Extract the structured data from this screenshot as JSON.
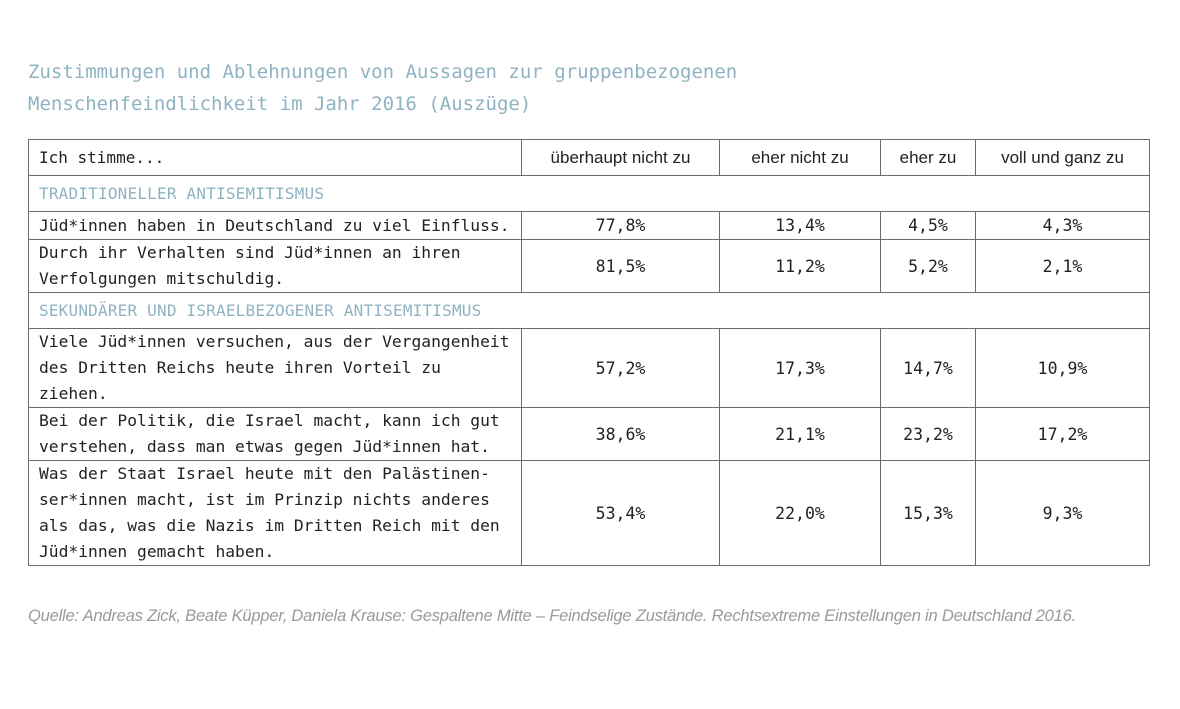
{
  "title": {
    "line1": "Zustimmungen und Ablehnungen von Aussagen zur gruppenbezogenen",
    "line2": "Menschenfeindlichkeit im Jahr 2016 (Auszüge)"
  },
  "table": {
    "headers": [
      "Ich stimme...",
      "überhaupt nicht zu",
      "eher nicht zu",
      "eher zu",
      "voll und ganz zu"
    ],
    "sections": [
      {
        "label": "TRADITIONELLER ANTISEMITISMUS",
        "rows": [
          {
            "statement": [
              "Jüd*innen haben in Deutschland zu viel Einfluss."
            ],
            "values": [
              "77,8%",
              "13,4%",
              "4,5%",
              "4,3%"
            ]
          },
          {
            "statement": [
              "Durch ihr Verhalten sind Jüd*innen an ihren",
              "Verfolgungen mitschuldig."
            ],
            "values": [
              "81,5%",
              "11,2%",
              "5,2%",
              "2,1%"
            ]
          }
        ]
      },
      {
        "label": "SEKUNDÄRER UND ISRAELBEZOGENER ANTISEMITISMUS",
        "rows": [
          {
            "statement": [
              "Viele Jüd*innen versuchen, aus der Vergangenheit",
              "des Dritten Reichs heute ihren Vorteil zu ziehen."
            ],
            "values": [
              "57,2%",
              "17,3%",
              "14,7%",
              "10,9%"
            ]
          },
          {
            "statement": [
              "Bei der Politik, die Israel macht, kann ich gut",
              "verstehen, dass man etwas gegen Jüd*innen hat."
            ],
            "values": [
              "38,6%",
              "21,1%",
              "23,2%",
              "17,2%"
            ]
          },
          {
            "statement": [
              "Was der Staat Israel heute mit den Palästinen-",
              "ser*innen macht, ist im Prinzip nichts anderes",
              "als das, was die Nazis im Dritten Reich mit den",
              "Jüd*innen gemacht haben."
            ],
            "values": [
              "53,4%",
              "22,0%",
              "15,3%",
              "9,3%"
            ]
          }
        ]
      }
    ]
  },
  "source": "Quelle: Andreas Zick, Beate Küpper, Daniela Krause: Gespaltene Mitte – Feindselige Zustände. Rechtsextreme Einstellungen in Deutschland 2016."
}
